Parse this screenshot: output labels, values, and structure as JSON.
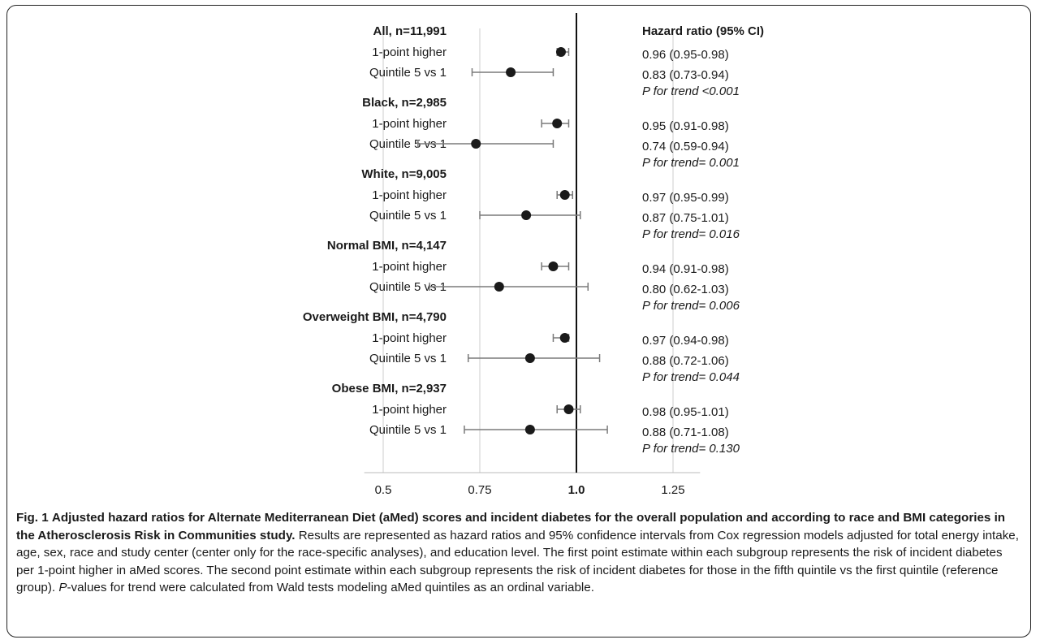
{
  "chart_data": {
    "type": "forest",
    "header": "Hazard ratio (95% CI)",
    "reference_line": 1.0,
    "xlim": [
      0.43,
      1.32
    ],
    "x_ticks": [
      "0.5",
      "0.75",
      "1.0",
      "1.25"
    ],
    "x_tick_values": [
      0.5,
      0.75,
      1.0,
      1.25
    ],
    "groups": [
      {
        "label": "All, n=11,991",
        "rows": [
          {
            "label": "1-point higher",
            "hr": 0.96,
            "lo": 0.95,
            "hi": 0.98,
            "text": "0.96 (0.95-0.98)"
          },
          {
            "label": "Quintile 5 vs 1",
            "hr": 0.83,
            "lo": 0.73,
            "hi": 0.94,
            "text": "0.83 (0.73-0.94)"
          }
        ],
        "p_trend": "P for trend <0.001"
      },
      {
        "label": "Black, n=2,985",
        "rows": [
          {
            "label": "1-point higher",
            "hr": 0.95,
            "lo": 0.91,
            "hi": 0.98,
            "text": "0.95 (0.91-0.98)"
          },
          {
            "label": "Quintile 5 vs 1",
            "hr": 0.74,
            "lo": 0.59,
            "hi": 0.94,
            "text": "0.74 (0.59-0.94)"
          }
        ],
        "p_trend": "P for trend= 0.001"
      },
      {
        "label": "White, n=9,005",
        "rows": [
          {
            "label": "1-point higher",
            "hr": 0.97,
            "lo": 0.95,
            "hi": 0.99,
            "text": "0.97 (0.95-0.99)"
          },
          {
            "label": "Quintile 5 vs 1",
            "hr": 0.87,
            "lo": 0.75,
            "hi": 1.01,
            "text": "0.87 (0.75-1.01)"
          }
        ],
        "p_trend": "P for trend= 0.016"
      },
      {
        "label": "Normal BMI, n=4,147",
        "rows": [
          {
            "label": "1-point higher",
            "hr": 0.94,
            "lo": 0.91,
            "hi": 0.98,
            "text": "0.94 (0.91-0.98)"
          },
          {
            "label": "Quintile 5 vs 1",
            "hr": 0.8,
            "lo": 0.62,
            "hi": 1.03,
            "text": "0.80 (0.62-1.03)"
          }
        ],
        "p_trend": "P for trend= 0.006"
      },
      {
        "label": "Overweight BMI, n=4,790",
        "rows": [
          {
            "label": "1-point higher",
            "hr": 0.97,
            "lo": 0.94,
            "hi": 0.98,
            "text": "0.97 (0.94-0.98)"
          },
          {
            "label": "Quintile 5 vs 1",
            "hr": 0.88,
            "lo": 0.72,
            "hi": 1.06,
            "text": "0.88 (0.72-1.06)"
          }
        ],
        "p_trend": "P for trend= 0.044"
      },
      {
        "label": "Obese BMI, n=2,937",
        "rows": [
          {
            "label": "1-point higher",
            "hr": 0.98,
            "lo": 0.95,
            "hi": 1.01,
            "text": "0.98 (0.95-1.01)"
          },
          {
            "label": "Quintile 5 vs 1",
            "hr": 0.88,
            "lo": 0.71,
            "hi": 1.08,
            "text": "0.88 (0.71-1.08)"
          }
        ],
        "p_trend": "P for trend= 0.130"
      }
    ]
  },
  "caption": {
    "label": "Fig. 1",
    "title": "Adjusted hazard ratios for Alternate Mediterranean Diet (aMed) scores and incident diabetes for the overall population and according to race and BMI categories in the Atherosclerosis Risk in Communities study.",
    "body": "Results are represented as hazard ratios and 95% confidence intervals from Cox regression models adjusted for total energy intake, age, sex, race and study center (center only for the race-specific analyses), and education level. The first point estimate within each subgroup represents the risk of incident diabetes per 1-point higher in aMed scores. The second point estimate within each subgroup represents the risk of incident diabetes for those in the fifth quintile vs the first quintile (reference group).",
    "p_italic": "P",
    "p_tail": "-values for trend were calculated from Wald tests modeling aMed quintiles as an ordinal variable."
  },
  "colors": {
    "point": "#1a1a1a",
    "ci": "#7a7a7a",
    "ref_line": "#111111",
    "grid": "#cccccc"
  }
}
